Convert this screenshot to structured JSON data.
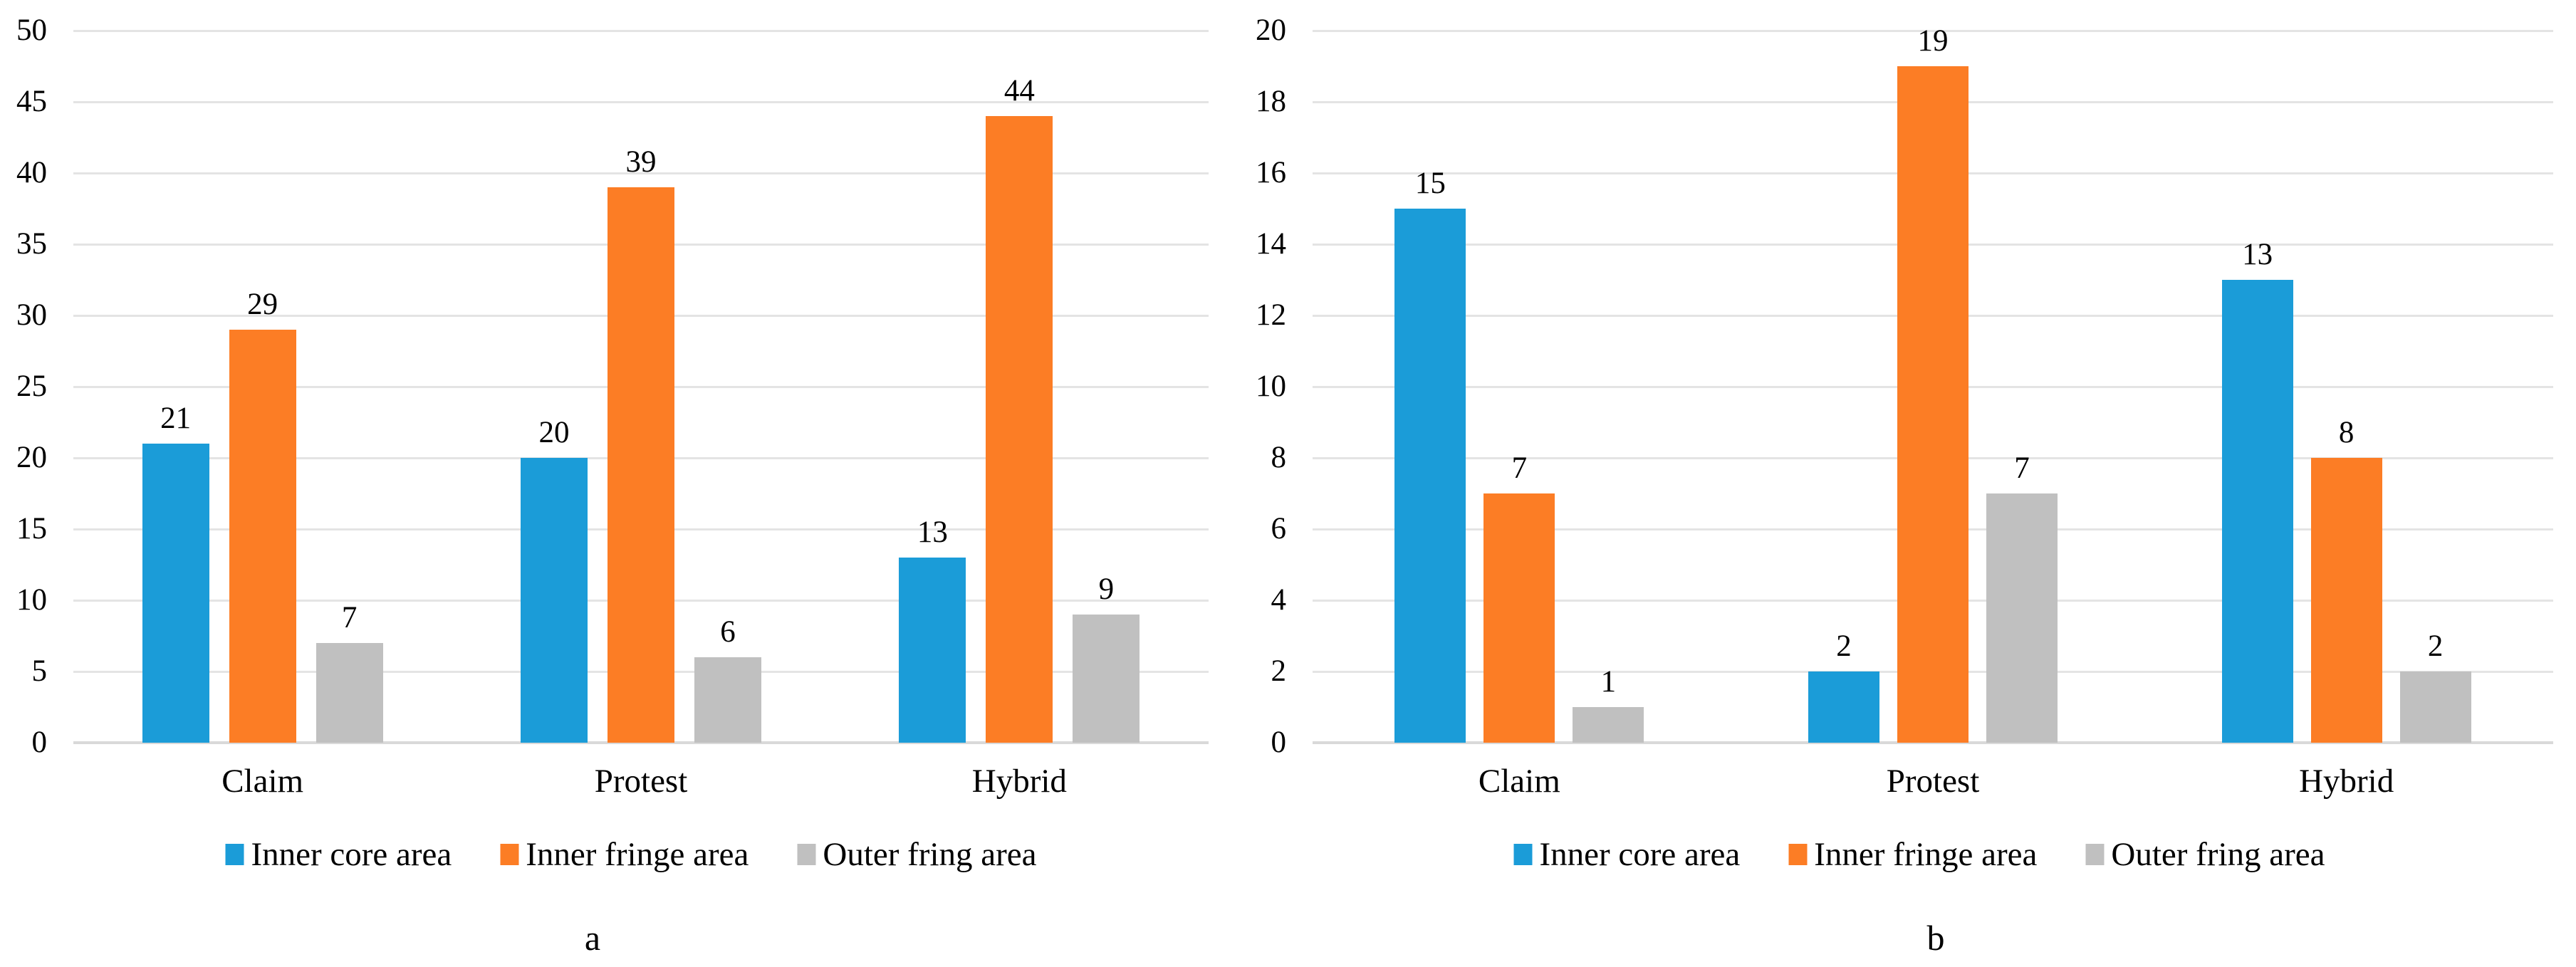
{
  "figure": {
    "background": "#ffffff",
    "text_color": "#000000",
    "gridline_color": "#e4e4e4",
    "baseline_color": "#d9d9d9"
  },
  "chart_data": [
    {
      "type": "bar",
      "panel_label": "a",
      "title": "",
      "xlabel": "",
      "ylabel": "",
      "categories": [
        "Claim",
        "Protest",
        "Hybrid"
      ],
      "series": [
        {
          "name": "Inner core area",
          "color": "#1b9cd8",
          "values": [
            21,
            20,
            13
          ]
        },
        {
          "name": "Inner fringe area",
          "color": "#fc7d25",
          "values": [
            29,
            39,
            44
          ]
        },
        {
          "name": "Outer fring area",
          "color": "#c0c0c0",
          "values": [
            7,
            6,
            9
          ]
        }
      ],
      "data_labels": [
        [
          21,
          29,
          7
        ],
        [
          20,
          39,
          6
        ],
        [
          13,
          44,
          9
        ]
      ],
      "ylim": [
        0,
        50
      ],
      "ytick_step": 5,
      "ytick_labels": [
        "0",
        "5",
        "10",
        "15",
        "20",
        "25",
        "30",
        "35",
        "40",
        "45",
        "50"
      ],
      "grid": true,
      "legend_position": "bottom"
    },
    {
      "type": "bar",
      "panel_label": "b",
      "title": "",
      "xlabel": "",
      "ylabel": "",
      "categories": [
        "Claim",
        "Protest",
        "Hybrid"
      ],
      "series": [
        {
          "name": "Inner core area",
          "color": "#1b9cd8",
          "values": [
            15,
            2,
            13
          ]
        },
        {
          "name": "Inner fringe area",
          "color": "#fc7d25",
          "values": [
            7,
            19,
            8
          ]
        },
        {
          "name": "Outer fring area",
          "color": "#c0c0c0",
          "values": [
            1,
            7,
            2
          ]
        }
      ],
      "data_labels": [
        [
          15,
          7,
          1
        ],
        [
          2,
          19,
          7
        ],
        [
          13,
          8,
          2
        ]
      ],
      "ylim": [
        0,
        20
      ],
      "ytick_step": 2,
      "ytick_labels": [
        "0",
        "2",
        "4",
        "6",
        "8",
        "10",
        "12",
        "14",
        "16",
        "18",
        "20"
      ],
      "grid": true,
      "legend_position": "bottom"
    }
  ]
}
